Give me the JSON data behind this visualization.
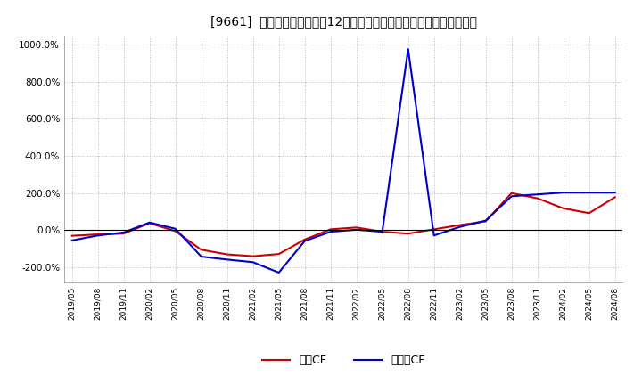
{
  "title": "[9661]  キャッシュフローの12か月移動合計の対前年同期増減率の推移",
  "background_color": "#ffffff",
  "plot_bg_color": "#ffffff",
  "grid_color": "#bbbbbb",
  "ylim": [
    -280,
    1050
  ],
  "yticks": [
    -200,
    0,
    200,
    400,
    600,
    800,
    1000
  ],
  "ytick_labels": [
    "-200.0%",
    "0.0%",
    "200.0%",
    "400.0%",
    "600.0%",
    "800.0%",
    "1000.0%"
  ],
  "legend_labels": [
    "営業CF",
    "フリーCF"
  ],
  "line_colors": [
    "#cc0000",
    "#0000cc"
  ],
  "line_width": 1.5,
  "xtick_labels": [
    "2019/05",
    "2019/08",
    "2019/11",
    "2020/02",
    "2020/05",
    "2020/08",
    "2020/11",
    "2021/02",
    "2021/05",
    "2021/08",
    "2021/11",
    "2022/02",
    "2022/05",
    "2022/08",
    "2022/11",
    "2023/02",
    "2023/05",
    "2023/08",
    "2023/11",
    "2024/02",
    "2024/05",
    "2024/08"
  ],
  "eigyo_cf": [
    -30,
    -22,
    -18,
    38,
    -5,
    -105,
    -130,
    -140,
    -128,
    -50,
    5,
    15,
    -8,
    -18,
    5,
    28,
    48,
    200,
    172,
    118,
    92,
    178
  ],
  "free_cf": [
    -55,
    -28,
    -12,
    42,
    8,
    -142,
    -158,
    -172,
    -228,
    -58,
    -8,
    3,
    -8,
    975,
    -28,
    18,
    52,
    183,
    193,
    203,
    203,
    203
  ]
}
